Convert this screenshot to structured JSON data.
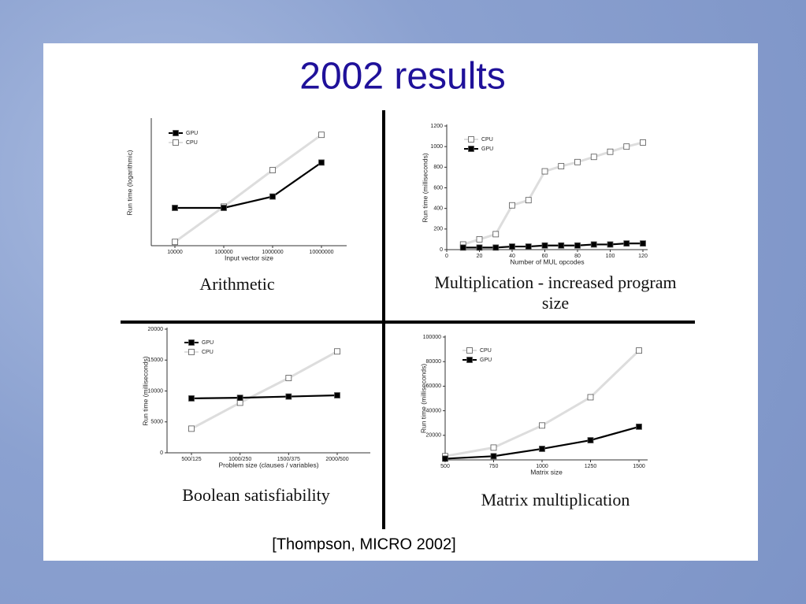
{
  "slide": {
    "title": "2002 results",
    "citation": "[Thompson, MICRO 2002]"
  },
  "chart_data": [
    {
      "type": "line",
      "caption": "Arithmetic",
      "xlabel": "Input vector size",
      "ylabel": "Run time (logarithmic)",
      "categories": [
        "10000",
        "100000",
        "1000000",
        "10000000"
      ],
      "ylim": [
        0,
        100
      ],
      "legend": "upper left",
      "series": [
        {
          "name": "GPU",
          "color": "#000000",
          "marker_fill": "#000000",
          "values": [
            30,
            30,
            39,
            66
          ]
        },
        {
          "name": "CPU",
          "color": "#dddddd",
          "marker_fill": "#ffffff",
          "values": [
            3,
            31,
            60,
            88
          ]
        }
      ]
    },
    {
      "type": "line",
      "caption": "Multiplication - increased program size",
      "xlabel": "Number of MUL opcodes",
      "ylabel": "Run time (milliseconds)",
      "x": [
        10,
        20,
        30,
        40,
        50,
        60,
        70,
        80,
        90,
        100,
        110,
        120
      ],
      "xlim": [
        0,
        120
      ],
      "xticks": [
        0,
        20,
        40,
        60,
        80,
        100,
        120
      ],
      "ylim": [
        0,
        1200
      ],
      "yticks": [
        0,
        200,
        400,
        600,
        800,
        1000,
        1200
      ],
      "legend": "upper left",
      "series": [
        {
          "name": "CPU",
          "color": "#dddddd",
          "marker_fill": "#ffffff",
          "values": [
            50,
            100,
            150,
            430,
            480,
            760,
            810,
            850,
            900,
            950,
            1000,
            1040
          ]
        },
        {
          "name": "GPU",
          "color": "#000000",
          "marker_fill": "#000000",
          "values": [
            20,
            20,
            20,
            30,
            30,
            40,
            40,
            40,
            50,
            50,
            60,
            60
          ]
        }
      ]
    },
    {
      "type": "line",
      "caption": "Boolean satisfiability",
      "xlabel": "Problem size (clauses / variables)",
      "ylabel": "Run time (milliseconds)",
      "categories": [
        "500/125",
        "1000/250",
        "1500/375",
        "2000/500"
      ],
      "ylim": [
        0,
        20000
      ],
      "yticks": [
        0,
        5000,
        10000,
        15000,
        20000
      ],
      "legend": "upper left",
      "series": [
        {
          "name": "GPU",
          "color": "#000000",
          "marker_fill": "#000000",
          "values": [
            8800,
            8900,
            9100,
            9300
          ]
        },
        {
          "name": "CPU",
          "color": "#dddddd",
          "marker_fill": "#ffffff",
          "values": [
            3900,
            8100,
            12100,
            16400
          ]
        }
      ]
    },
    {
      "type": "line",
      "caption": "Matrix multiplication",
      "xlabel": "Matrix size",
      "ylabel": "Run time (milliseconds)",
      "x": [
        500,
        750,
        1000,
        1250,
        1500
      ],
      "xlim": [
        500,
        1500
      ],
      "xticks": [
        500,
        750,
        1000,
        1250,
        1500
      ],
      "ylim": [
        0,
        100000
      ],
      "yticks": [
        20000,
        40000,
        60000,
        80000,
        100000
      ],
      "legend": "upper left",
      "series": [
        {
          "name": "CPU",
          "color": "#dddddd",
          "marker_fill": "#ffffff",
          "values": [
            3000,
            10000,
            28000,
            51000,
            89000
          ]
        },
        {
          "name": "GPU",
          "color": "#000000",
          "marker_fill": "#000000",
          "values": [
            1000,
            3000,
            9000,
            16000,
            27000
          ]
        }
      ]
    }
  ]
}
